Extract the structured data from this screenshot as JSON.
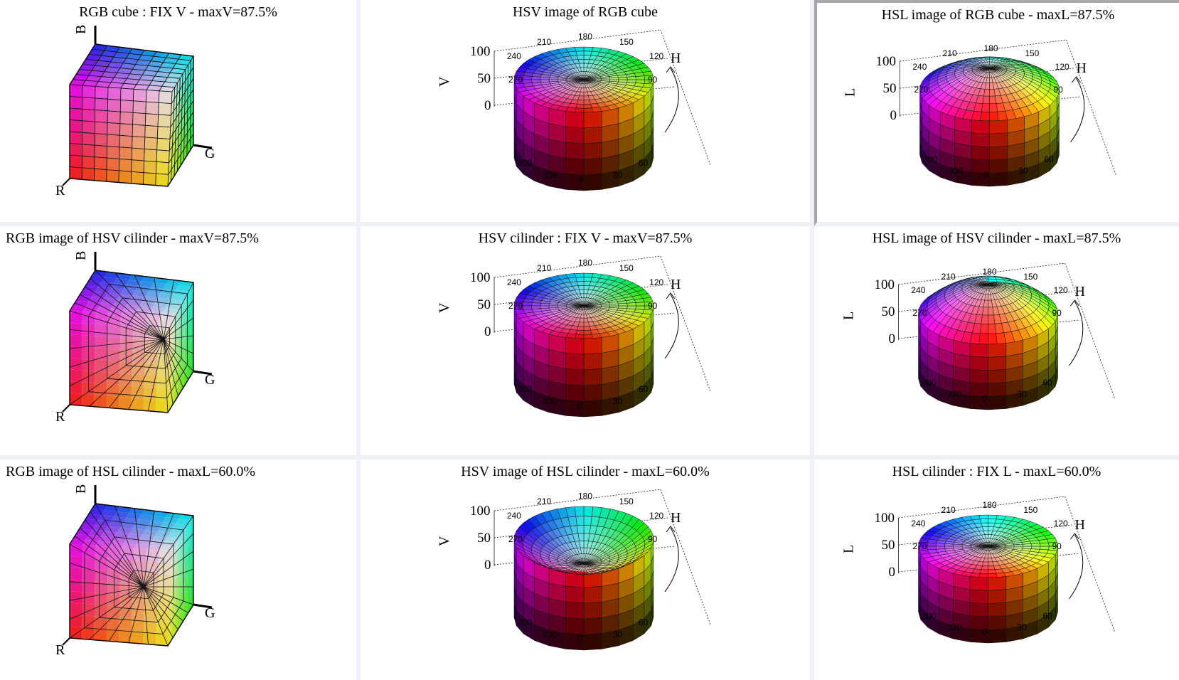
{
  "panels": [
    {
      "id": "rgb-cube",
      "title": "RGB cube : FIX V - maxV=87.5%",
      "bold": true,
      "kind": "cube",
      "variant": "grid"
    },
    {
      "id": "hsv-image-rgb-cube",
      "title": "HSV image of RGB cube",
      "bold": false,
      "kind": "cyl",
      "space": "hsv",
      "variant": "rgbimg"
    },
    {
      "id": "hsl-image-rgb-cube",
      "title": "HSL image of RGB cube - maxL=87.5%",
      "bold": false,
      "kind": "cyl",
      "space": "hsl",
      "variant": "rgbimg"
    },
    {
      "id": "rgb-image-hsv-cilinder",
      "title": "RGB image of HSV cilinder - maxV=87.5%",
      "bold": false,
      "kind": "cube",
      "variant": "hsvimg"
    },
    {
      "id": "hsv-cilinder",
      "title": "HSV cilinder : FIX V - maxV=87.5%",
      "bold": true,
      "kind": "cyl",
      "space": "hsv",
      "variant": "full"
    },
    {
      "id": "hsl-image-hsv-cilinder",
      "title": "HSL image of HSV cilinder - maxL=87.5%",
      "bold": false,
      "kind": "cyl",
      "space": "hsl",
      "variant": "dome"
    },
    {
      "id": "rgb-image-hsl-cilinder",
      "title": "RGB image of HSL cilinder - maxL=60.0%",
      "bold": false,
      "kind": "cube",
      "variant": "hslimg"
    },
    {
      "id": "hsv-image-hsl-cilinder",
      "title": "HSV image of HSL cilinder - maxL=60.0%",
      "bold": false,
      "kind": "cyl",
      "space": "hsv",
      "variant": "bowl"
    },
    {
      "id": "hsl-cilinder",
      "title": "HSL cilinder : FIX L - maxL=60.0%",
      "bold": true,
      "kind": "cyl",
      "space": "hsl",
      "variant": "full"
    }
  ],
  "cube_axes": {
    "r": "R",
    "g": "G",
    "b": "B"
  },
  "hsv_axes": {
    "vlabel": "V",
    "hlabel": "H",
    "ticks": [
      "100",
      "50",
      "0"
    ]
  },
  "hsl_axes": {
    "vlabel": "L",
    "hlabel": "H",
    "ticks": [
      "100",
      "50",
      "0"
    ]
  },
  "hue_ticks": [
    "0",
    "30",
    "60",
    "90",
    "120",
    "150",
    "180",
    "210",
    "240",
    "270",
    "300",
    "330"
  ]
}
